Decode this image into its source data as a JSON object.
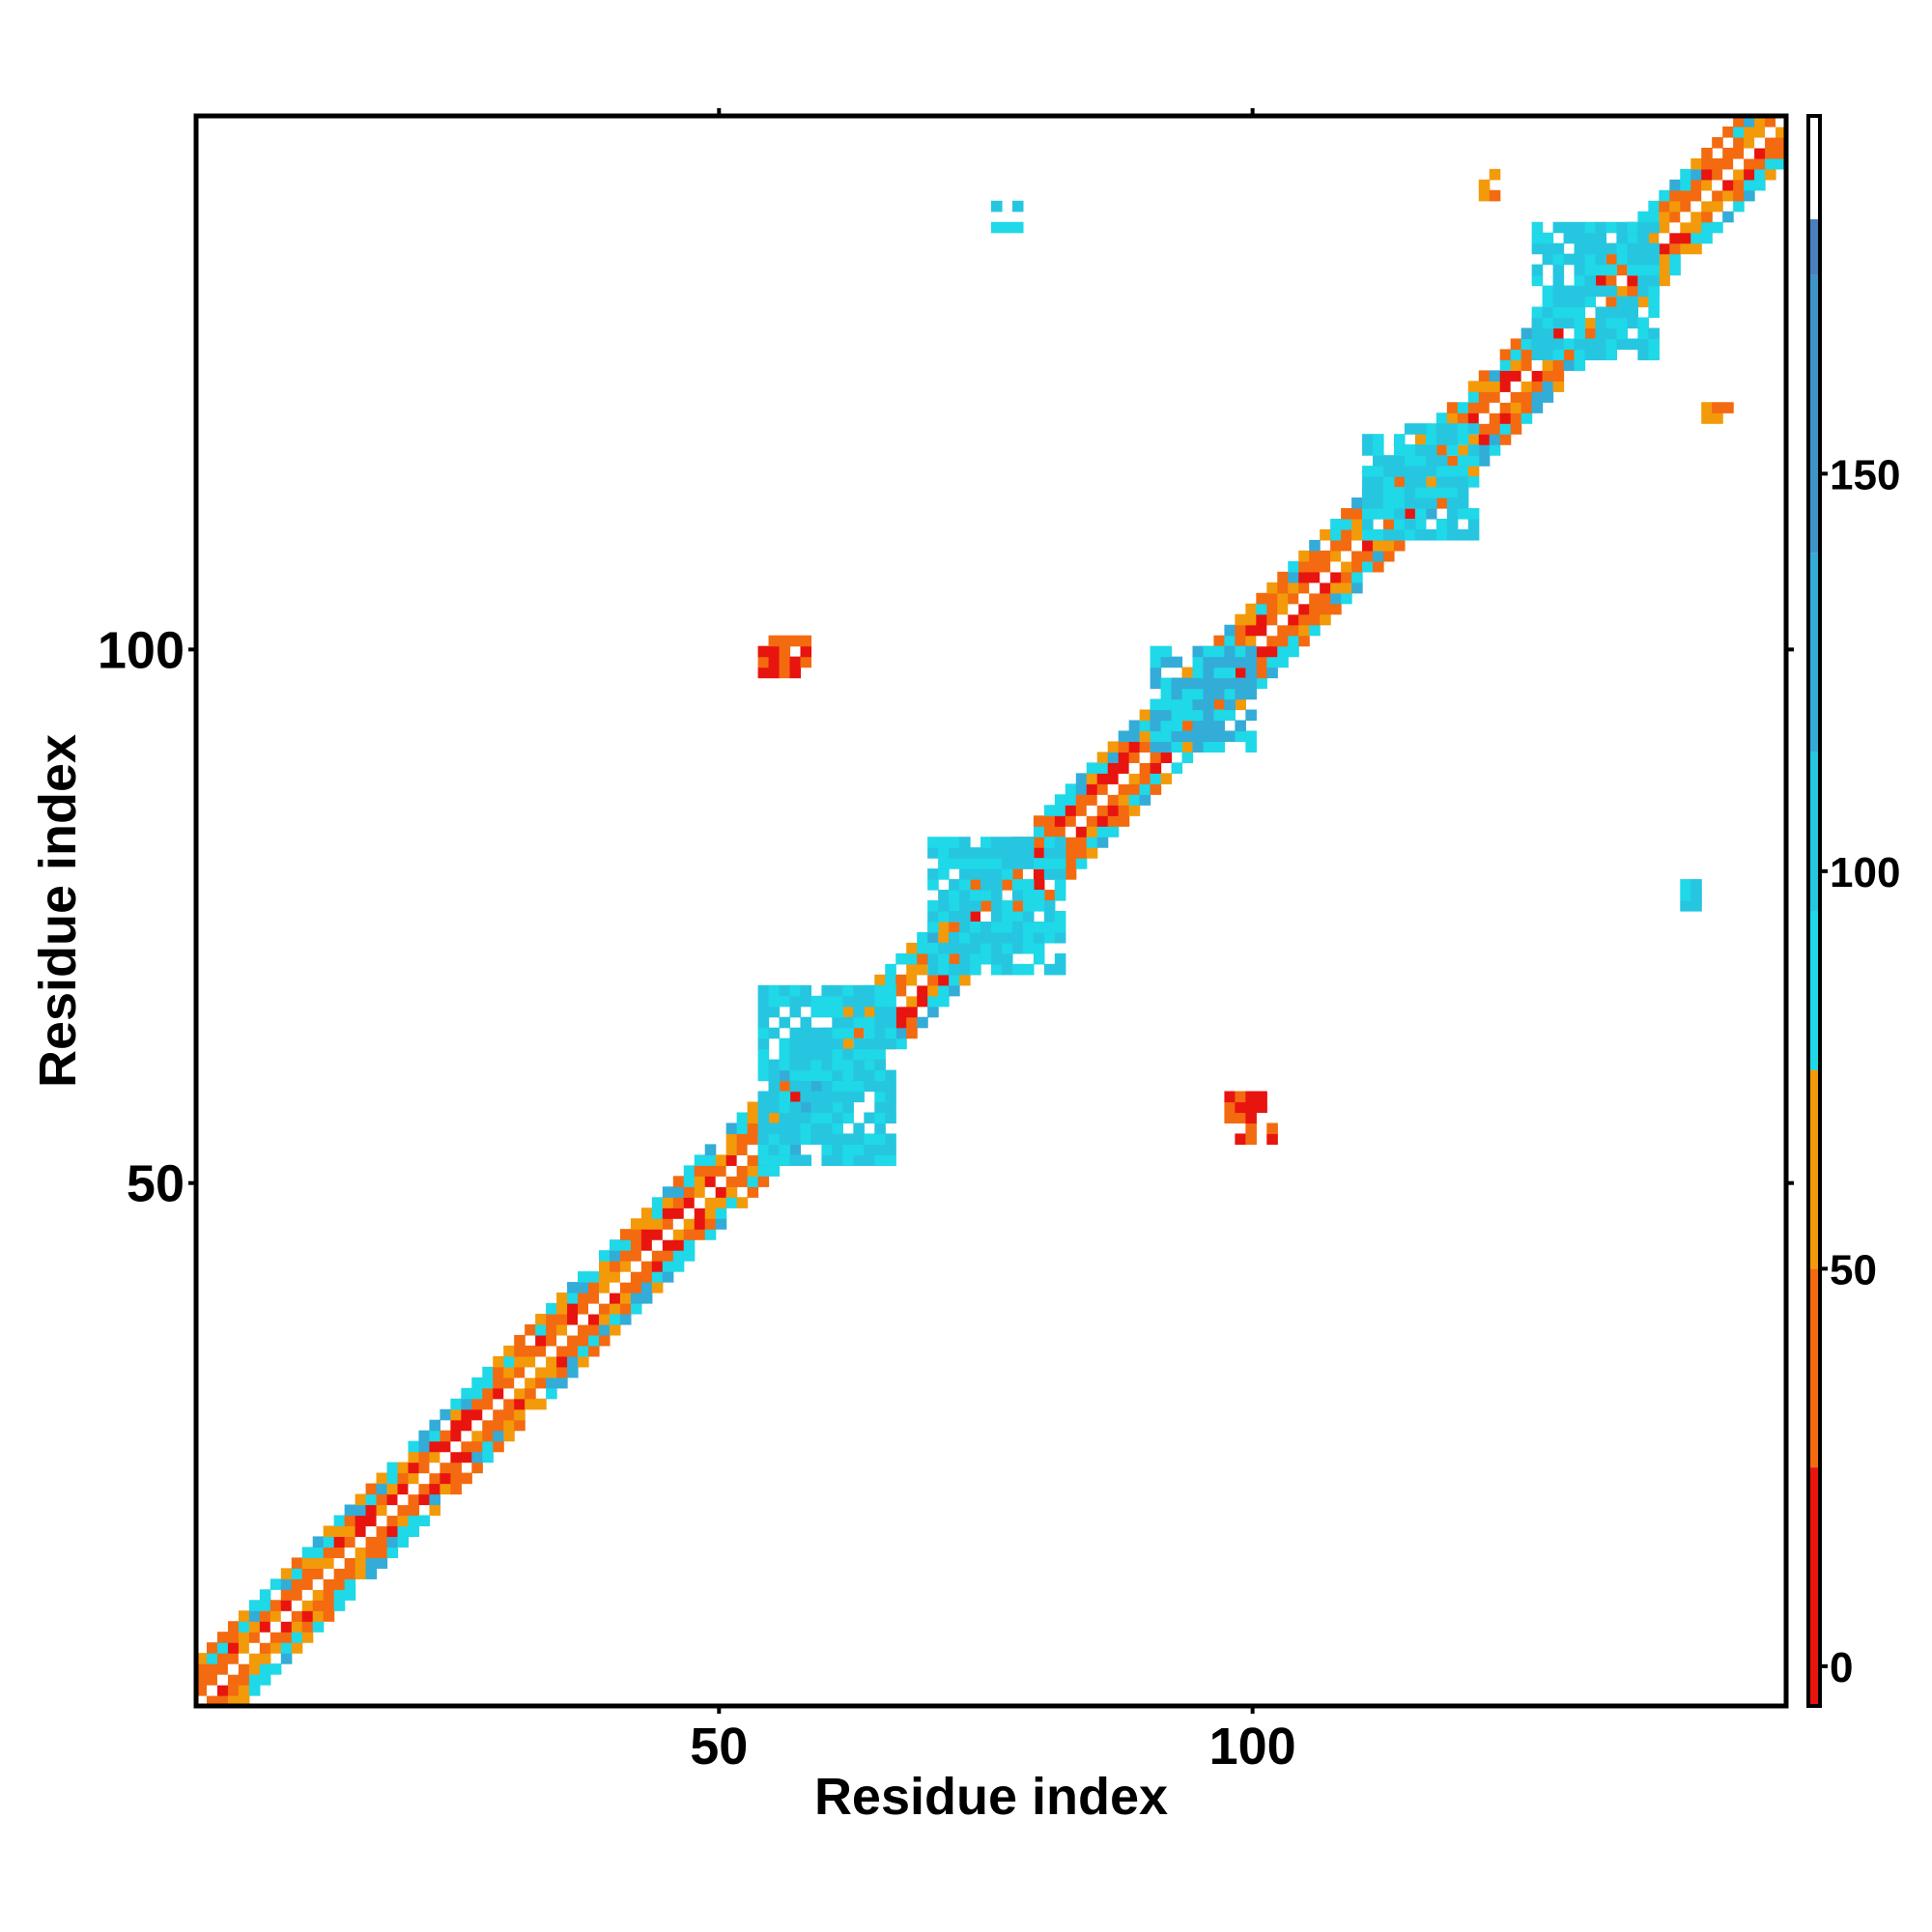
{
  "chart_data": {
    "type": "heatmap",
    "title": "",
    "xlabel": "Residue index",
    "ylabel": "Residue index",
    "xlim": [
      1,
      150
    ],
    "ylim": [
      1,
      150
    ],
    "x_ticks": [
      "50",
      "100"
    ],
    "y_ticks": [
      "50",
      "100"
    ],
    "colorbar": {
      "ticks": [
        "0",
        "50",
        "100",
        "150"
      ],
      "range": [
        -5,
        195
      ],
      "bands": [
        {
          "from": -5,
          "to": 25,
          "color": "#e8140f"
        },
        {
          "from": 25,
          "to": 50,
          "color": "#f36a10"
        },
        {
          "from": 50,
          "to": 75,
          "color": "#f39a0a"
        },
        {
          "from": 75,
          "to": 95,
          "color": "#1fd8e8"
        },
        {
          "from": 95,
          "to": 115,
          "color": "#26c6e0"
        },
        {
          "from": 115,
          "to": 140,
          "color": "#33acd8"
        },
        {
          "from": 140,
          "to": 175,
          "color": "#3f95c8"
        },
        {
          "from": 175,
          "to": 182,
          "color": "#4a80bb"
        },
        {
          "from": 182,
          "to": 195,
          "color": "#ffffff"
        }
      ]
    },
    "pattern_colors": [
      "#e8140f",
      "#f36a10",
      "#f39a0a",
      "#1fd8e8",
      "#33acd8",
      "#4a86c0"
    ],
    "diagonal_band": {
      "from": 1,
      "to": 150,
      "half_width": 4
    },
    "regions": [
      {
        "x": [
          55,
          60
        ],
        "y": [
          55,
          60
        ],
        "value": 130
      },
      {
        "x": [
          54,
          66
        ],
        "y": [
          52,
          68
        ],
        "value": 110
      },
      {
        "x": [
          70,
          82
        ],
        "y": [
          70,
          82
        ],
        "value": 95
      },
      {
        "x": [
          91,
          100
        ],
        "y": [
          91,
          100
        ],
        "value": 120
      },
      {
        "x": [
          111,
          121
        ],
        "y": [
          111,
          121
        ],
        "value": 95
      },
      {
        "x": [
          127,
          138
        ],
        "y": [
          128,
          140
        ],
        "value": 95
      },
      {
        "x": [
          54,
          58
        ],
        "y": [
          98,
          101
        ],
        "value": 10
      },
      {
        "x": [
          98,
          102
        ],
        "y": [
          54,
          58
        ],
        "value": 10
      },
      {
        "x": [
          76,
          78
        ],
        "y": [
          140,
          142
        ],
        "value": 105
      },
      {
        "x": [
          140,
          142
        ],
        "y": [
          76,
          78
        ],
        "value": 105
      },
      {
        "x": [
          122,
          123
        ],
        "y": [
          143,
          145
        ],
        "value": 55
      },
      {
        "x": [
          143,
          145
        ],
        "y": [
          122,
          123
        ],
        "value": 55
      }
    ]
  }
}
